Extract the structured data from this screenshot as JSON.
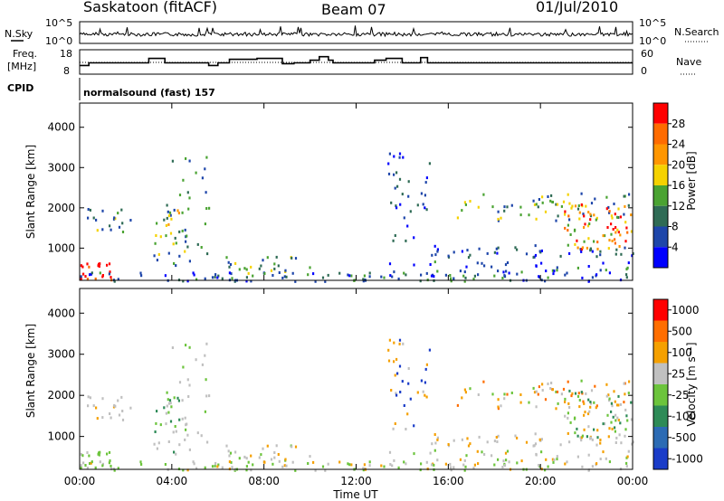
{
  "header": {
    "station": "Saskatoon (fitACF)",
    "beam": "Beam 07",
    "date": "01/Jul/2010"
  },
  "panels": {
    "nsky_label": "N.Sky",
    "nsky_ticks": [
      "10^5",
      "10^0"
    ],
    "nsearch_label": "N.Search",
    "nsearch_ticks": [
      "10^5",
      "10^0"
    ],
    "freq_label_line1": "Freq.",
    "freq_label_line2": "[MHz]",
    "freq_ticks": [
      "18",
      "8"
    ],
    "nave_label": "Nave",
    "nave_ticks": [
      "60",
      "0"
    ],
    "cpid_label": "CPID",
    "cpid_text": "normalsound (fast) 157"
  },
  "chart_data": [
    {
      "type": "heatmap",
      "name": "power",
      "ylabel": "Slant Range [km]",
      "yticks": [
        1000,
        2000,
        3000,
        4000
      ],
      "ylim": [
        200,
        4600
      ],
      "xlim": [
        0,
        24
      ],
      "xticks": [
        "00:00",
        "04:00",
        "08:00",
        "12:00",
        "16:00",
        "20:00",
        "00:00"
      ],
      "colorbar_label": "Power [dB]",
      "colorbar_ticks": [
        "4",
        "8",
        "12",
        "16",
        "20",
        "24",
        "28"
      ],
      "colors": [
        "#0000ff",
        "#1e46aa",
        "#2f6b55",
        "#4aa332",
        "#f5d200",
        "#ff9600",
        "#ff6b00",
        "#ff0000"
      ]
    },
    {
      "type": "heatmap",
      "name": "velocity",
      "ylabel": "Slant Range [km]",
      "yticks": [
        1000,
        2000,
        3000,
        4000
      ],
      "ylim": [
        200,
        4600
      ],
      "xlim": [
        0,
        24
      ],
      "xticks": [
        "00:00",
        "04:00",
        "08:00",
        "12:00",
        "16:00",
        "20:00",
        "00:00"
      ],
      "xlabel": "Time UT",
      "colorbar_label": "Velocity [m s⁻¹]",
      "colorbar_ticks": [
        "1000",
        "500",
        "100",
        "25",
        "-25",
        "-100",
        "-500",
        "-1000"
      ],
      "colors": [
        "#1a3cc8",
        "#2c6bb4",
        "#2e8b57",
        "#6cc43c",
        "#c0c0c0",
        "#f5a000",
        "#ff6e00",
        "#ff0000"
      ]
    }
  ],
  "frequency_series": {
    "name": "Freq.",
    "unit": "MHz",
    "points": [
      [
        0,
        11
      ],
      [
        0.4,
        11
      ],
      [
        0.4,
        12.5
      ],
      [
        3.0,
        12.5
      ],
      [
        3.0,
        15
      ],
      [
        3.7,
        15
      ],
      [
        3.7,
        12.5
      ],
      [
        5.6,
        12.5
      ],
      [
        5.6,
        11
      ],
      [
        6.0,
        11
      ],
      [
        6.0,
        12.5
      ],
      [
        6.5,
        12.5
      ],
      [
        6.5,
        14.5
      ],
      [
        7.7,
        14.5
      ],
      [
        7.7,
        15
      ],
      [
        8.8,
        15
      ],
      [
        8.8,
        12
      ],
      [
        9.3,
        12
      ],
      [
        9.3,
        12.5
      ],
      [
        10.0,
        12.5
      ],
      [
        10.0,
        14
      ],
      [
        10.4,
        14
      ],
      [
        10.4,
        16
      ],
      [
        10.8,
        16
      ],
      [
        10.8,
        14
      ],
      [
        11.0,
        14
      ],
      [
        11.0,
        12.5
      ],
      [
        12.8,
        12.5
      ],
      [
        12.8,
        14
      ],
      [
        13.3,
        14
      ],
      [
        13.3,
        15
      ],
      [
        14.0,
        15
      ],
      [
        14.0,
        12.5
      ],
      [
        14.8,
        12.5
      ],
      [
        14.8,
        15.5
      ],
      [
        15.1,
        15.5
      ],
      [
        15.1,
        12.5
      ],
      [
        24,
        12.5
      ]
    ]
  }
}
